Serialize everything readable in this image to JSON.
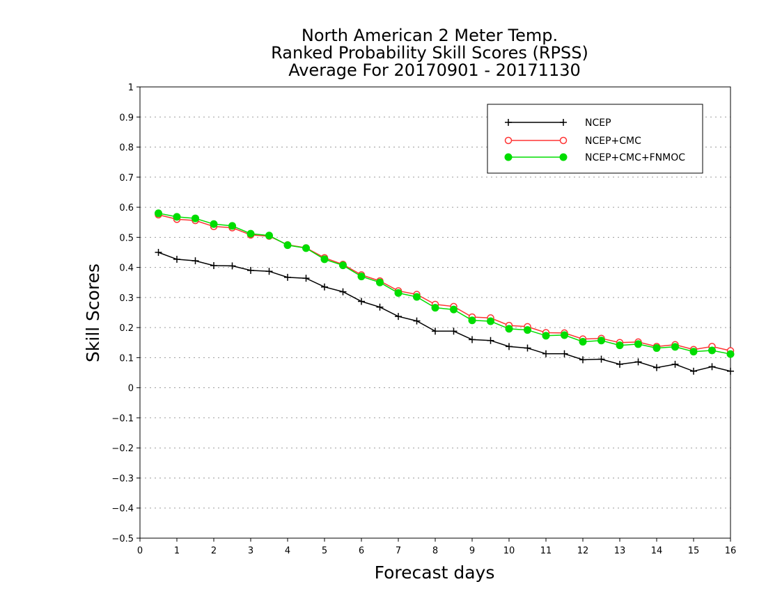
{
  "chart_data": {
    "type": "line",
    "title": [
      "North American 2 Meter Temp.",
      "Ranked Probability Skill Scores (RPSS)",
      "Average For 20170901 - 20171130"
    ],
    "xlabel": "Forecast days",
    "ylabel": "Skill Scores",
    "xlim": [
      0,
      16
    ],
    "ylim": [
      -0.5,
      1
    ],
    "x_ticks": [
      "0",
      "1",
      "2",
      "3",
      "4",
      "5",
      "6",
      "7",
      "8",
      "9",
      "10",
      "11",
      "12",
      "13",
      "14",
      "15",
      "16"
    ],
    "y_ticks": [
      "1",
      "0.9",
      "0.8",
      "0.7",
      "0.6",
      "0.5",
      "0.4",
      "0.3",
      "0.2",
      "0.1",
      "0",
      "−0.1",
      "−0.2",
      "−0.3",
      "−0.4",
      "−0.5"
    ],
    "grid": "horizontal dotted",
    "legend_position": "top-right",
    "x": [
      0.5,
      1,
      1.5,
      2,
      2.5,
      3,
      3.5,
      4,
      4.5,
      5,
      5.5,
      6,
      6.5,
      7,
      7.5,
      8,
      8.5,
      9,
      9.5,
      10,
      10.5,
      11,
      11.5,
      12,
      12.5,
      13,
      13.5,
      14,
      14.5,
      15,
      15.5,
      16
    ],
    "series": [
      {
        "name": "NCEP",
        "color": "#000000",
        "marker": "plus",
        "values": [
          0.45,
          0.427,
          0.422,
          0.406,
          0.405,
          0.39,
          0.387,
          0.367,
          0.364,
          0.335,
          0.319,
          0.287,
          0.268,
          0.237,
          0.222,
          0.188,
          0.188,
          0.16,
          0.157,
          0.137,
          0.132,
          0.113,
          0.113,
          0.093,
          0.095,
          0.078,
          0.086,
          0.067,
          0.078,
          0.055,
          0.07,
          0.055
        ]
      },
      {
        "name": "NCEP+CMC",
        "color": "#ff3333",
        "marker": "open-circle",
        "values": [
          0.575,
          0.56,
          0.556,
          0.536,
          0.532,
          0.508,
          0.504,
          0.475,
          0.465,
          0.432,
          0.41,
          0.375,
          0.355,
          0.322,
          0.31,
          0.277,
          0.27,
          0.235,
          0.232,
          0.207,
          0.203,
          0.183,
          0.182,
          0.162,
          0.164,
          0.15,
          0.152,
          0.137,
          0.143,
          0.127,
          0.137,
          0.123
        ]
      },
      {
        "name": "NCEP+CMC+FNMOC",
        "color": "#00dd00",
        "marker": "filled-circle",
        "values": [
          0.58,
          0.568,
          0.563,
          0.544,
          0.538,
          0.512,
          0.506,
          0.474,
          0.464,
          0.427,
          0.407,
          0.37,
          0.35,
          0.315,
          0.302,
          0.266,
          0.26,
          0.224,
          0.221,
          0.196,
          0.192,
          0.173,
          0.175,
          0.153,
          0.157,
          0.141,
          0.145,
          0.132,
          0.136,
          0.12,
          0.124,
          0.112
        ]
      }
    ]
  }
}
